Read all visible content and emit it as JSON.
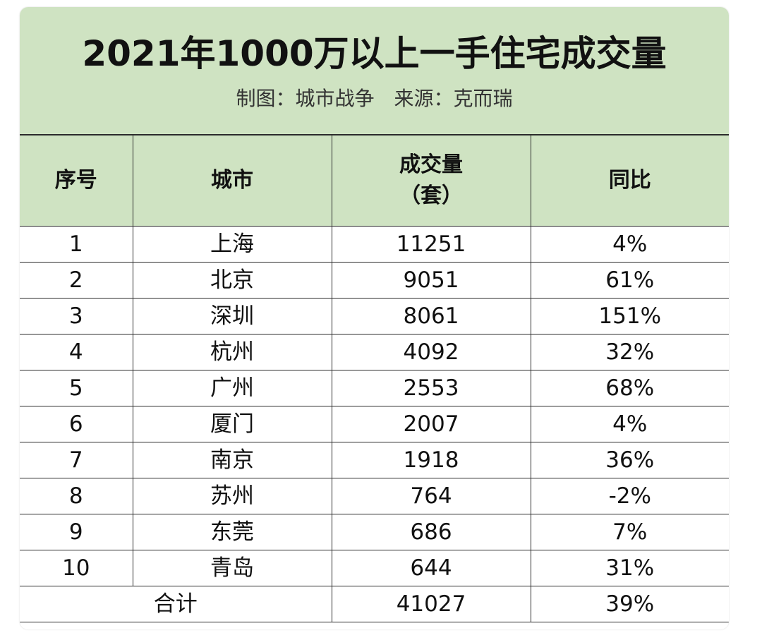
{
  "header": {
    "title": "2021年1000万以上一手住宅成交量",
    "subtitle": "制图：城市战争　来源：克而瑞"
  },
  "colors": {
    "header_bg": "#cfe3c2",
    "border": "#2b2b2b",
    "text": "#111111"
  },
  "chart_data": {
    "type": "table",
    "title": "2021年1000万以上一手住宅成交量",
    "subtitle": "制图：城市战争　来源：克而瑞",
    "columns": [
      "序号",
      "城市",
      "成交量",
      "（套）",
      "同比"
    ],
    "column_labels": {
      "index": "序号",
      "city": "城市",
      "volume_line1": "成交量",
      "volume_line2": "（套）",
      "yoy": "同比"
    },
    "rows": [
      {
        "index": "1",
        "city": "上海",
        "volume": "11251",
        "yoy": "4%"
      },
      {
        "index": "2",
        "city": "北京",
        "volume": "9051",
        "yoy": "61%"
      },
      {
        "index": "3",
        "city": "深圳",
        "volume": "8061",
        "yoy": "151%"
      },
      {
        "index": "4",
        "city": "杭州",
        "volume": "4092",
        "yoy": "32%"
      },
      {
        "index": "5",
        "city": "广州",
        "volume": "2553",
        "yoy": "68%"
      },
      {
        "index": "6",
        "city": "厦门",
        "volume": "2007",
        "yoy": "4%"
      },
      {
        "index": "7",
        "city": "南京",
        "volume": "1918",
        "yoy": "36%"
      },
      {
        "index": "8",
        "city": "苏州",
        "volume": "764",
        "yoy": "-2%"
      },
      {
        "index": "9",
        "city": "东莞",
        "volume": "686",
        "yoy": "7%"
      },
      {
        "index": "10",
        "city": "青岛",
        "volume": "644",
        "yoy": "31%"
      }
    ],
    "total": {
      "label": "合计",
      "volume": "41027",
      "yoy": "39%"
    }
  }
}
